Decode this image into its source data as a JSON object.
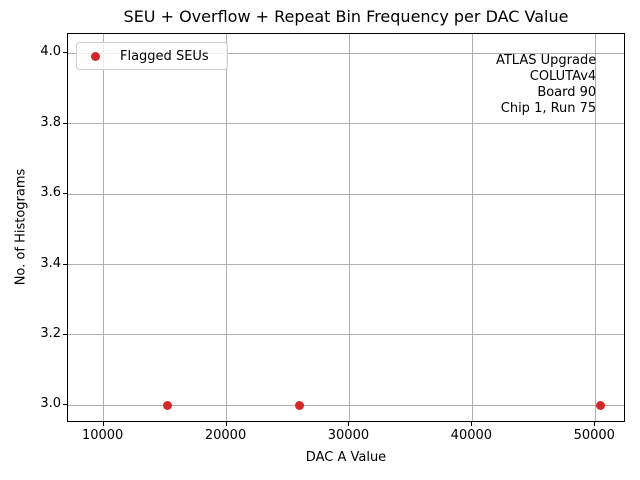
{
  "chart_data": {
    "type": "scatter",
    "title": "SEU + Overflow + Repeat Bin Frequency per DAC Value",
    "xlabel": "DAC A Value",
    "ylabel": "No. of Histograms",
    "xlim": [
      7100,
      52500
    ],
    "ylim": [
      2.95,
      4.055
    ],
    "xticks": [
      10000,
      20000,
      30000,
      40000,
      50000
    ],
    "yticks": [
      3.0,
      3.2,
      3.4,
      3.6,
      3.8,
      4.0
    ],
    "grid": true,
    "grid_color": "#b0b0b0",
    "legend_position": "upper left",
    "series": [
      {
        "name": "Flagged SEUs",
        "marker": "circle",
        "color": "#d62728",
        "points": [
          {
            "x": 15200,
            "y": 3.0
          },
          {
            "x": 25900,
            "y": 3.0
          },
          {
            "x": 50400,
            "y": 3.0
          }
        ]
      }
    ],
    "annotation": {
      "lines": [
        "ATLAS Upgrade",
        "COLUTAv4",
        "Board 90",
        "Chip 1, Run 75"
      ]
    }
  }
}
